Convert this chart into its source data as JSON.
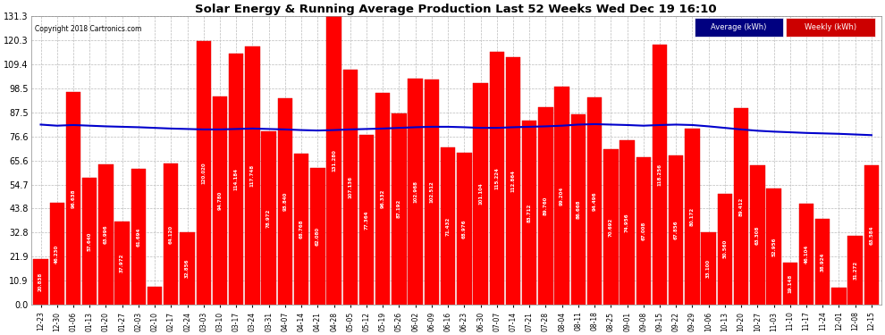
{
  "title": "Solar Energy & Running Average Production Last 52 Weeks Wed Dec 19 16:10",
  "copyright": "Copyright 2018 Cartronics.com",
  "legend_avg": "Average (kWh)",
  "legend_weekly": "Weekly (kWh)",
  "ylim": [
    0,
    131.3
  ],
  "yticks": [
    0.0,
    10.9,
    21.9,
    32.8,
    43.8,
    54.7,
    65.6,
    76.6,
    87.5,
    98.5,
    109.4,
    120.3,
    131.3
  ],
  "bar_color": "#ff0000",
  "bar_edge_color": "#dd0000",
  "avg_line_color": "#0000cc",
  "background_color": "#ffffff",
  "grid_color": "#bbbbbb",
  "labels": [
    "12-23",
    "12-30",
    "01-06",
    "01-13",
    "01-20",
    "01-27",
    "02-03",
    "02-10",
    "02-17",
    "02-24",
    "03-03",
    "03-10",
    "03-17",
    "03-24",
    "03-31",
    "04-07",
    "04-14",
    "04-21",
    "04-28",
    "05-05",
    "05-12",
    "05-19",
    "05-26",
    "06-02",
    "06-09",
    "06-16",
    "06-23",
    "06-30",
    "07-07",
    "07-14",
    "07-21",
    "07-28",
    "08-04",
    "08-11",
    "08-18",
    "08-25",
    "09-01",
    "09-08",
    "09-15",
    "09-22",
    "09-29",
    "10-06",
    "10-13",
    "10-20",
    "10-27",
    "11-03",
    "11-10",
    "11-17",
    "11-24",
    "12-01",
    "12-08",
    "12-15"
  ],
  "weekly_values": [
    20.838,
    46.23,
    96.638,
    57.64,
    63.996,
    37.972,
    61.694,
    7.926,
    64.12,
    32.856,
    120.02,
    94.78,
    114.184,
    117.748,
    78.972,
    93.84,
    68.768,
    62.08,
    131.28,
    107.136,
    77.364,
    96.332,
    87.192,
    102.968,
    102.512,
    71.432,
    68.976,
    101.104,
    115.224,
    112.864,
    83.712,
    89.76,
    99.204,
    86.668,
    94.496,
    70.692,
    74.956,
    67.008,
    118.256,
    67.856,
    80.172,
    33.1,
    50.56,
    89.412,
    63.308,
    52.956,
    19.148,
    46.104,
    38.924,
    7.84,
    31.272,
    63.584
  ],
  "avg_values": [
    82.0,
    81.5,
    81.8,
    81.5,
    81.2,
    81.0,
    80.8,
    80.5,
    80.2,
    80.0,
    79.8,
    79.8,
    80.0,
    80.2,
    80.0,
    79.8,
    79.5,
    79.3,
    79.5,
    79.8,
    80.0,
    80.2,
    80.5,
    80.8,
    81.0,
    81.0,
    80.8,
    80.5,
    80.5,
    80.8,
    81.0,
    81.2,
    81.5,
    82.0,
    82.2,
    82.0,
    81.8,
    81.5,
    81.8,
    82.0,
    81.8,
    81.2,
    80.5,
    79.8,
    79.2,
    78.8,
    78.5,
    78.2,
    78.0,
    77.8,
    77.5,
    77.2
  ]
}
